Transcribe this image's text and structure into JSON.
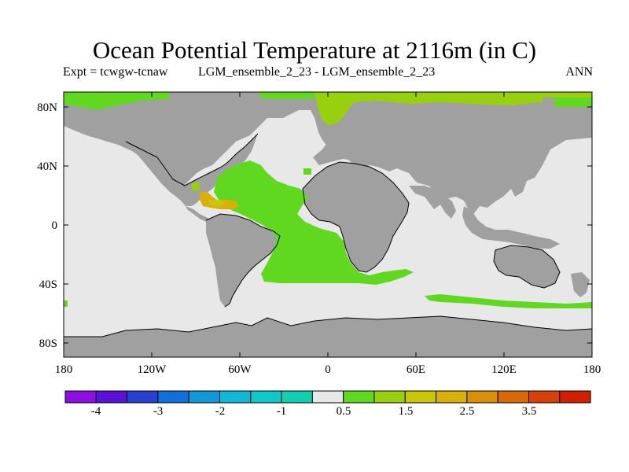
{
  "title": "Ocean Potential Temperature at 2116m (in C)",
  "subtitle_left": "Expt = tcwgw-tcnaw",
  "subtitle_center": "LGM_ensemble_2_23 - LGM_ensemble_2_23",
  "subtitle_right": "ANN",
  "lat_labels": [
    "80N",
    "40N",
    "0",
    "40S",
    "80S"
  ],
  "lon_labels": [
    "180",
    "120W",
    "60W",
    "0",
    "60E",
    "120E",
    "180"
  ],
  "colorbar": {
    "labels": [
      "-4",
      "-3",
      "-2",
      "-1",
      "0.5",
      "1.5",
      "2.5",
      "3.5"
    ],
    "colors": [
      "#8c10e0",
      "#5a10d8",
      "#2840d0",
      "#1070d8",
      "#1098d8",
      "#10b8d8",
      "#10c8c8",
      "#10d0b0",
      "#e8e8e8",
      "#60d820",
      "#98d010",
      "#c8c808",
      "#d8b008",
      "#d89008",
      "#d86808",
      "#d84008",
      "#d02000"
    ]
  },
  "colors": {
    "land": "#a0a0a0",
    "ocean_neutral": "#e8e8e8",
    "warm_anomaly": "#60d820",
    "warm_anomaly_light": "#98d010",
    "hot_anomaly": "#d8b008",
    "hot_anomaly_2": "#c8c808"
  }
}
